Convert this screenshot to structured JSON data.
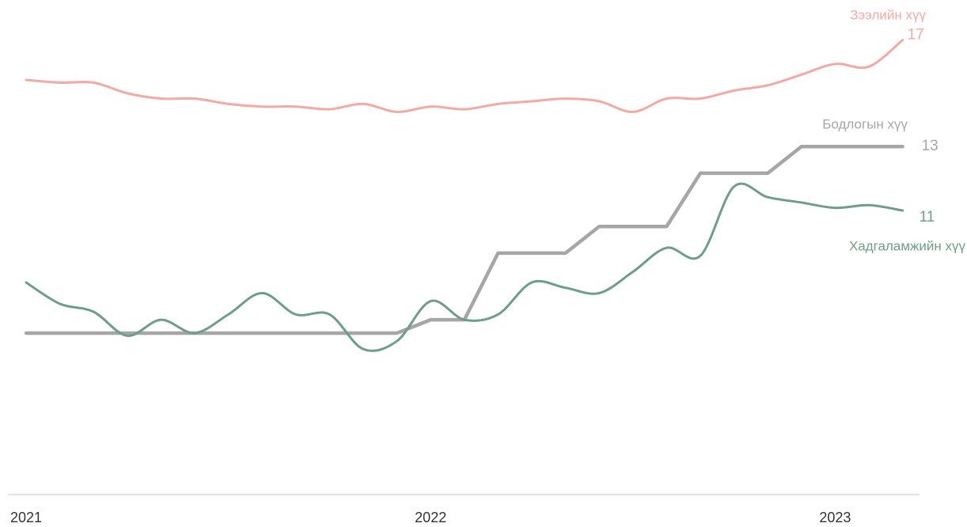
{
  "chart_data": {
    "type": "line",
    "categories": [
      "2021",
      null,
      null,
      null,
      null,
      null,
      null,
      null,
      null,
      null,
      null,
      null,
      "2022",
      null,
      null,
      null,
      null,
      null,
      null,
      null,
      null,
      null,
      null,
      null,
      "2023",
      null,
      null
    ],
    "ylim": [
      0,
      18.5
    ],
    "series": [
      {
        "name": "Зээлийн хүү",
        "color": "#f4a9a4",
        "smooth": true,
        "values": [
          15.5,
          15.4,
          15.4,
          15.0,
          14.8,
          14.8,
          14.6,
          14.5,
          14.5,
          14.4,
          14.6,
          14.3,
          14.5,
          14.4,
          14.6,
          14.7,
          14.8,
          14.7,
          14.3,
          14.8,
          14.8,
          15.1,
          15.3,
          15.7,
          16.1,
          16.0,
          17
        ],
        "value_labels": [
          null,
          null,
          null,
          null,
          null,
          null,
          null,
          null,
          null,
          null,
          null,
          null,
          null,
          null,
          null,
          null,
          null,
          null,
          null,
          null,
          null,
          null,
          null,
          null,
          null,
          null,
          "17"
        ]
      },
      {
        "name": "Бодлогын хүү",
        "color": "#a6a6a6",
        "smooth": false,
        "values": [
          6,
          6,
          6,
          6,
          6,
          6,
          6,
          6,
          6,
          6,
          6,
          6,
          6.5,
          6.5,
          9,
          9,
          9,
          10,
          10,
          10,
          12,
          12,
          12,
          13,
          13,
          13,
          13
        ],
        "value_labels": [
          null,
          null,
          null,
          null,
          null,
          null,
          null,
          null,
          null,
          null,
          null,
          null,
          null,
          null,
          null,
          null,
          null,
          null,
          null,
          null,
          null,
          null,
          null,
          null,
          null,
          null,
          "13"
        ]
      },
      {
        "name": "Хадгаламжийн хүү",
        "color": "#6e9e88",
        "smooth": true,
        "values": [
          7.9,
          7.1,
          6.8,
          5.9,
          6.5,
          6.0,
          6.7,
          7.5,
          6.7,
          6.7,
          5.4,
          5.7,
          7.2,
          6.5,
          6.7,
          7.9,
          7.7,
          7.5,
          8.3,
          9.2,
          8.9,
          11.5,
          11.1,
          10.9,
          10.7,
          10.8,
          10.6
        ],
        "value_labels": [
          null,
          null,
          null,
          null,
          null,
          null,
          null,
          null,
          null,
          null,
          null,
          null,
          null,
          null,
          null,
          null,
          null,
          null,
          null,
          null,
          null,
          null,
          null,
          null,
          null,
          null,
          "11"
        ]
      }
    ]
  }
}
